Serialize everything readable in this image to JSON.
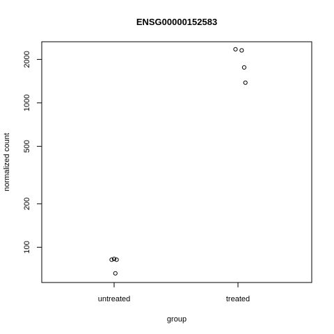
{
  "chart_data": {
    "type": "scatter",
    "title": "ENSG00000152583",
    "xlabel": "group",
    "ylabel": "normalized count",
    "categories": [
      "untreated",
      "treated"
    ],
    "y_scale": "log",
    "ylim": [
      57,
      2650
    ],
    "y_ticks": [
      100,
      200,
      500,
      1000,
      2000
    ],
    "y_tick_labels": [
      "100",
      "200",
      "500",
      "1000",
      "2000"
    ],
    "grid": false,
    "points": [
      {
        "group": "untreated",
        "x": 0.98,
        "y": 82
      },
      {
        "group": "untreated",
        "x": 1.0,
        "y": 83
      },
      {
        "group": "untreated",
        "x": 1.02,
        "y": 82
      },
      {
        "group": "untreated",
        "x": 1.01,
        "y": 66
      },
      {
        "group": "treated",
        "x": 1.98,
        "y": 2350
      },
      {
        "group": "treated",
        "x": 2.03,
        "y": 2310
      },
      {
        "group": "treated",
        "x": 2.05,
        "y": 1760
      },
      {
        "group": "treated",
        "x": 2.06,
        "y": 1380
      }
    ]
  }
}
